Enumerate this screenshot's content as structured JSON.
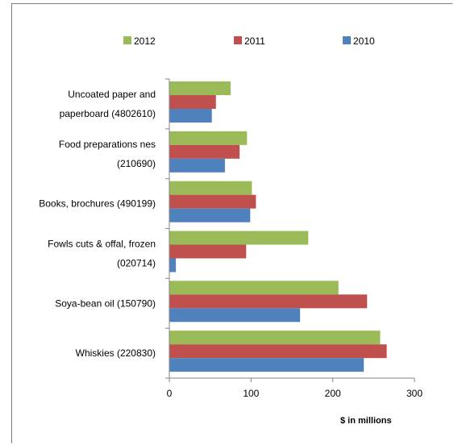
{
  "chart_data": {
    "type": "bar",
    "orientation": "horizontal",
    "categories": [
      [
        "Uncoated paper and",
        "paperboard (4802610)"
      ],
      [
        "Food preparations nes",
        "(210690)"
      ],
      [
        "Books, brochures (490199)"
      ],
      [
        "Fowls cuts & offal, frozen",
        "(020714)"
      ],
      [
        "Soya-bean oil (150790)"
      ],
      [
        "Whiskies (220830)"
      ]
    ],
    "series": [
      {
        "name": "2012",
        "color": "#9bbb59",
        "values": [
          75,
          95,
          101,
          170,
          207,
          258
        ]
      },
      {
        "name": "2011",
        "color": "#c0504d",
        "values": [
          57,
          86,
          106,
          94,
          242,
          266
        ]
      },
      {
        "name": "2010",
        "color": "#4f81bd",
        "values": [
          52,
          68,
          99,
          8,
          160,
          238
        ]
      }
    ],
    "xlim": [
      0,
      300
    ],
    "xticks": [
      "0",
      "100",
      "200",
      "300"
    ],
    "xlabel": "$ in millions",
    "legend_position": "top",
    "grid": false
  }
}
